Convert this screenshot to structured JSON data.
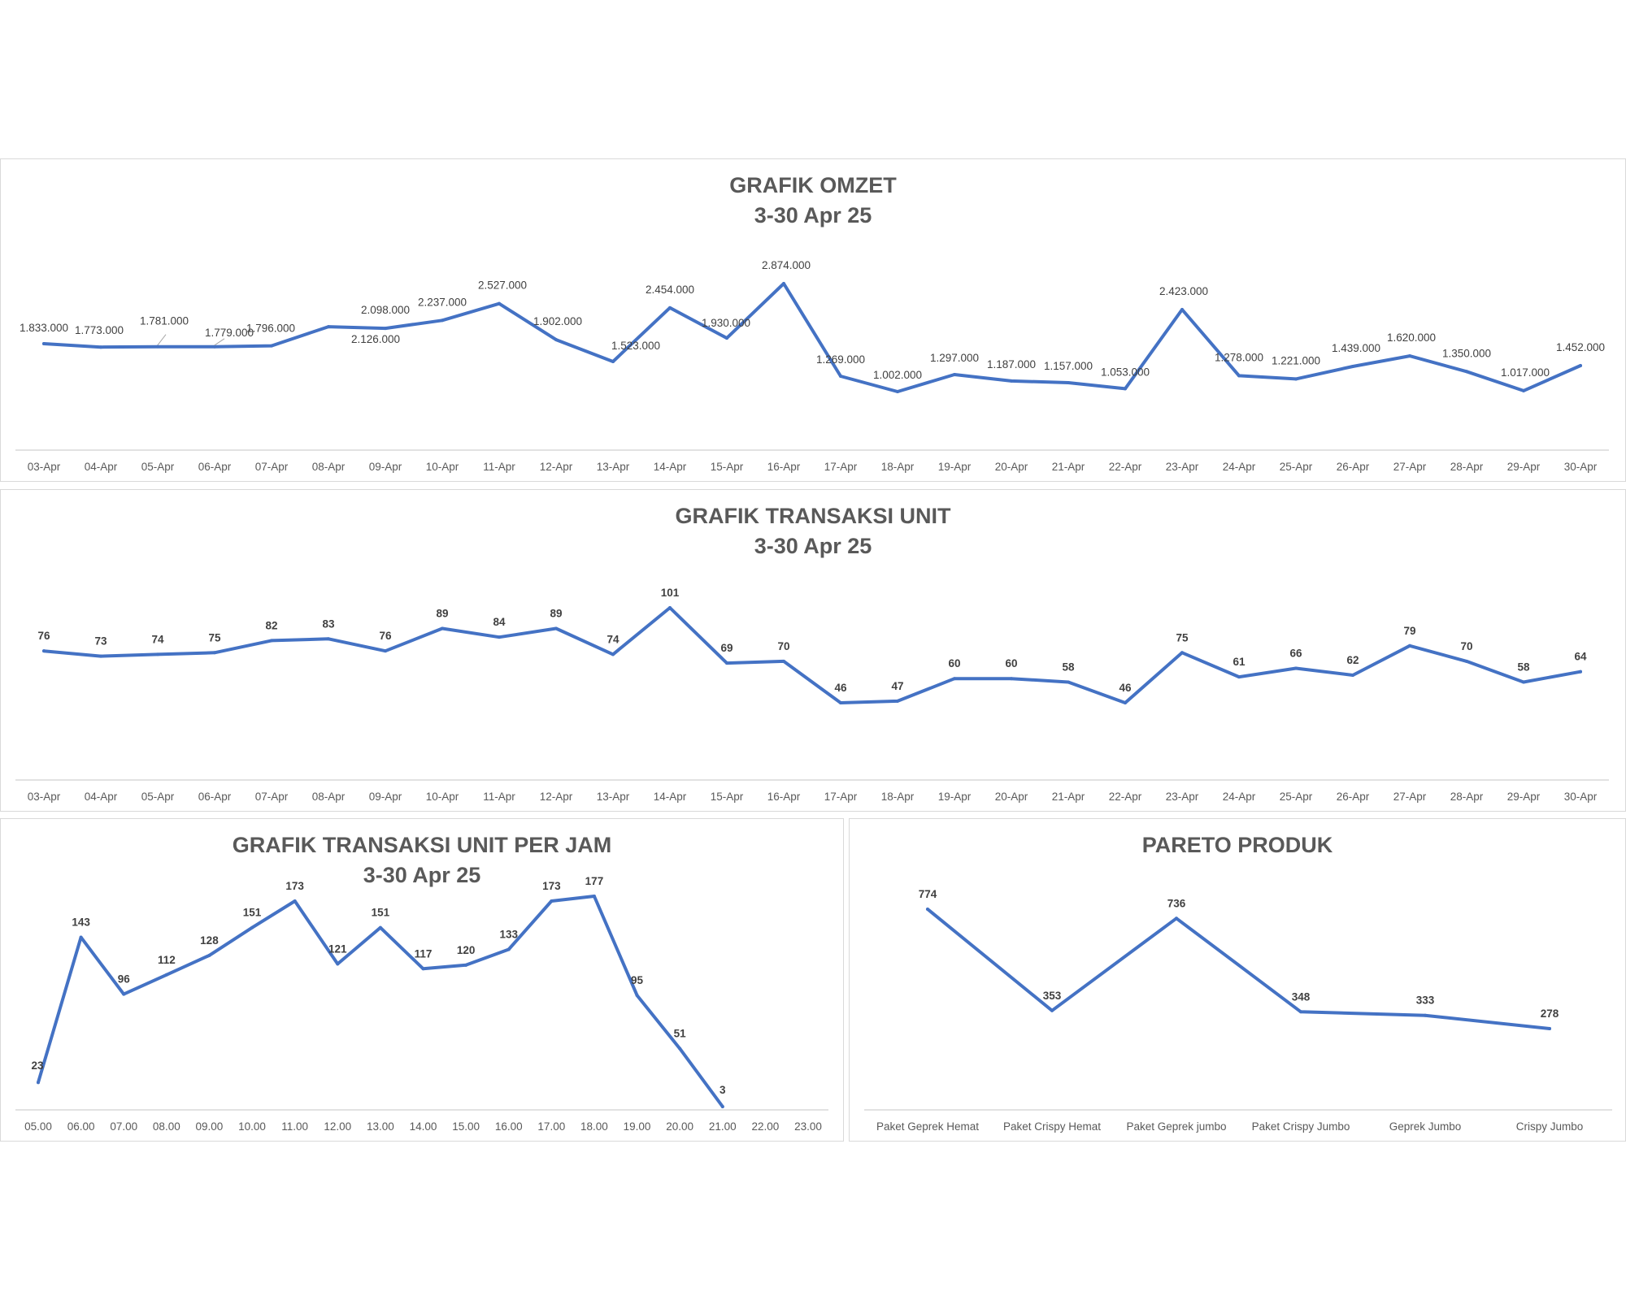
{
  "colors": {
    "series": "#4472c4",
    "title": "#595959",
    "label": "#404040",
    "axis": "#d9d9d9",
    "border": "#d9d9d9"
  },
  "omzet": {
    "title_line1": "GRAFIK OMZET",
    "title_line2": "3-30 Apr 25"
  },
  "unit": {
    "title_line1": "GRAFIK TRANSAKSI UNIT",
    "title_line2": "3-30 Apr 25"
  },
  "jam": {
    "title_line1": "GRAFIK TRANSAKSI UNIT PER JAM",
    "title_line2": "3-30 Apr 25"
  },
  "pareto": {
    "title_line1": "PARETO PRODUK"
  },
  "chart_data": [
    {
      "type": "line",
      "title": "GRAFIK OMZET",
      "subtitle": "3-30 Apr 25",
      "categories": [
        "03-Apr",
        "04-Apr",
        "05-Apr",
        "06-Apr",
        "07-Apr",
        "08-Apr",
        "09-Apr",
        "10-Apr",
        "11-Apr",
        "12-Apr",
        "13-Apr",
        "14-Apr",
        "15-Apr",
        "16-Apr",
        "17-Apr",
        "18-Apr",
        "19-Apr",
        "20-Apr",
        "21-Apr",
        "22-Apr",
        "23-Apr",
        "24-Apr",
        "25-Apr",
        "26-Apr",
        "27-Apr",
        "28-Apr",
        "29-Apr",
        "30-Apr"
      ],
      "values": [
        1833000,
        1773000,
        1781000,
        1779000,
        1796000,
        2126000,
        2098000,
        2237000,
        2527000,
        1902000,
        1523000,
        2454000,
        1930000,
        2874000,
        1269000,
        1002000,
        1297000,
        1187000,
        1157000,
        1053000,
        2423000,
        1278000,
        1221000,
        1439000,
        1620000,
        1350000,
        1017000,
        1452000
      ],
      "value_labels": [
        "1.833.000",
        "1.773.000",
        "1.781.000",
        "1.779.000",
        "1.796.000",
        "2.126.000",
        "2.098.000",
        "2.237.000",
        "2.527.000",
        "1.902.000",
        "1.523.000",
        "2.454.000",
        "1.930.000",
        "2.874.000",
        "1.269.000",
        "1.002.000",
        "1.297.000",
        "1.187.000",
        "1.157.000",
        "1.053.000",
        "2.423.000",
        "1.278.000",
        "1.221.000",
        "1.439.000",
        "1.620.000",
        "1.350.000",
        "1.017.000",
        "1.452.000"
      ],
      "xlabel": "",
      "ylabel": "",
      "grid": false,
      "legend": "none"
    },
    {
      "type": "line",
      "title": "GRAFIK TRANSAKSI UNIT",
      "subtitle": "3-30 Apr 25",
      "categories": [
        "03-Apr",
        "04-Apr",
        "05-Apr",
        "06-Apr",
        "07-Apr",
        "08-Apr",
        "09-Apr",
        "10-Apr",
        "11-Apr",
        "12-Apr",
        "13-Apr",
        "14-Apr",
        "15-Apr",
        "16-Apr",
        "17-Apr",
        "18-Apr",
        "19-Apr",
        "20-Apr",
        "21-Apr",
        "22-Apr",
        "23-Apr",
        "24-Apr",
        "25-Apr",
        "26-Apr",
        "27-Apr",
        "28-Apr",
        "29-Apr",
        "30-Apr"
      ],
      "values": [
        76,
        73,
        74,
        75,
        82,
        83,
        76,
        89,
        84,
        89,
        74,
        101,
        69,
        70,
        46,
        47,
        60,
        60,
        58,
        46,
        75,
        61,
        66,
        62,
        79,
        70,
        58,
        64
      ],
      "xlabel": "",
      "ylabel": "",
      "grid": false,
      "legend": "none"
    },
    {
      "type": "line",
      "title": "GRAFIK TRANSAKSI UNIT PER JAM",
      "subtitle": "3-30 Apr 25",
      "categories": [
        "05.00",
        "06.00",
        "07.00",
        "08.00",
        "09.00",
        "10.00",
        "11.00",
        "12.00",
        "13.00",
        "14.00",
        "15.00",
        "16.00",
        "17.00",
        "18.00",
        "19.00",
        "20.00",
        "21.00",
        "22.00",
        "23.00"
      ],
      "values": [
        23,
        143,
        96,
        112,
        128,
        151,
        173,
        121,
        151,
        117,
        120,
        133,
        173,
        177,
        95,
        51,
        3,
        null,
        null
      ],
      "xlabel": "",
      "ylabel": "",
      "grid": false,
      "legend": "none"
    },
    {
      "type": "line",
      "title": "PARETO PRODUK",
      "categories": [
        "Paket Geprek Hemat",
        "Paket Crispy Hemat",
        "Paket Geprek jumbo",
        "Paket Crispy Jumbo",
        "Geprek Jumbo",
        "Crispy Jumbo"
      ],
      "values": [
        774,
        353,
        736,
        348,
        333,
        278
      ],
      "xlabel": "",
      "ylabel": "",
      "grid": false,
      "legend": "none"
    }
  ]
}
